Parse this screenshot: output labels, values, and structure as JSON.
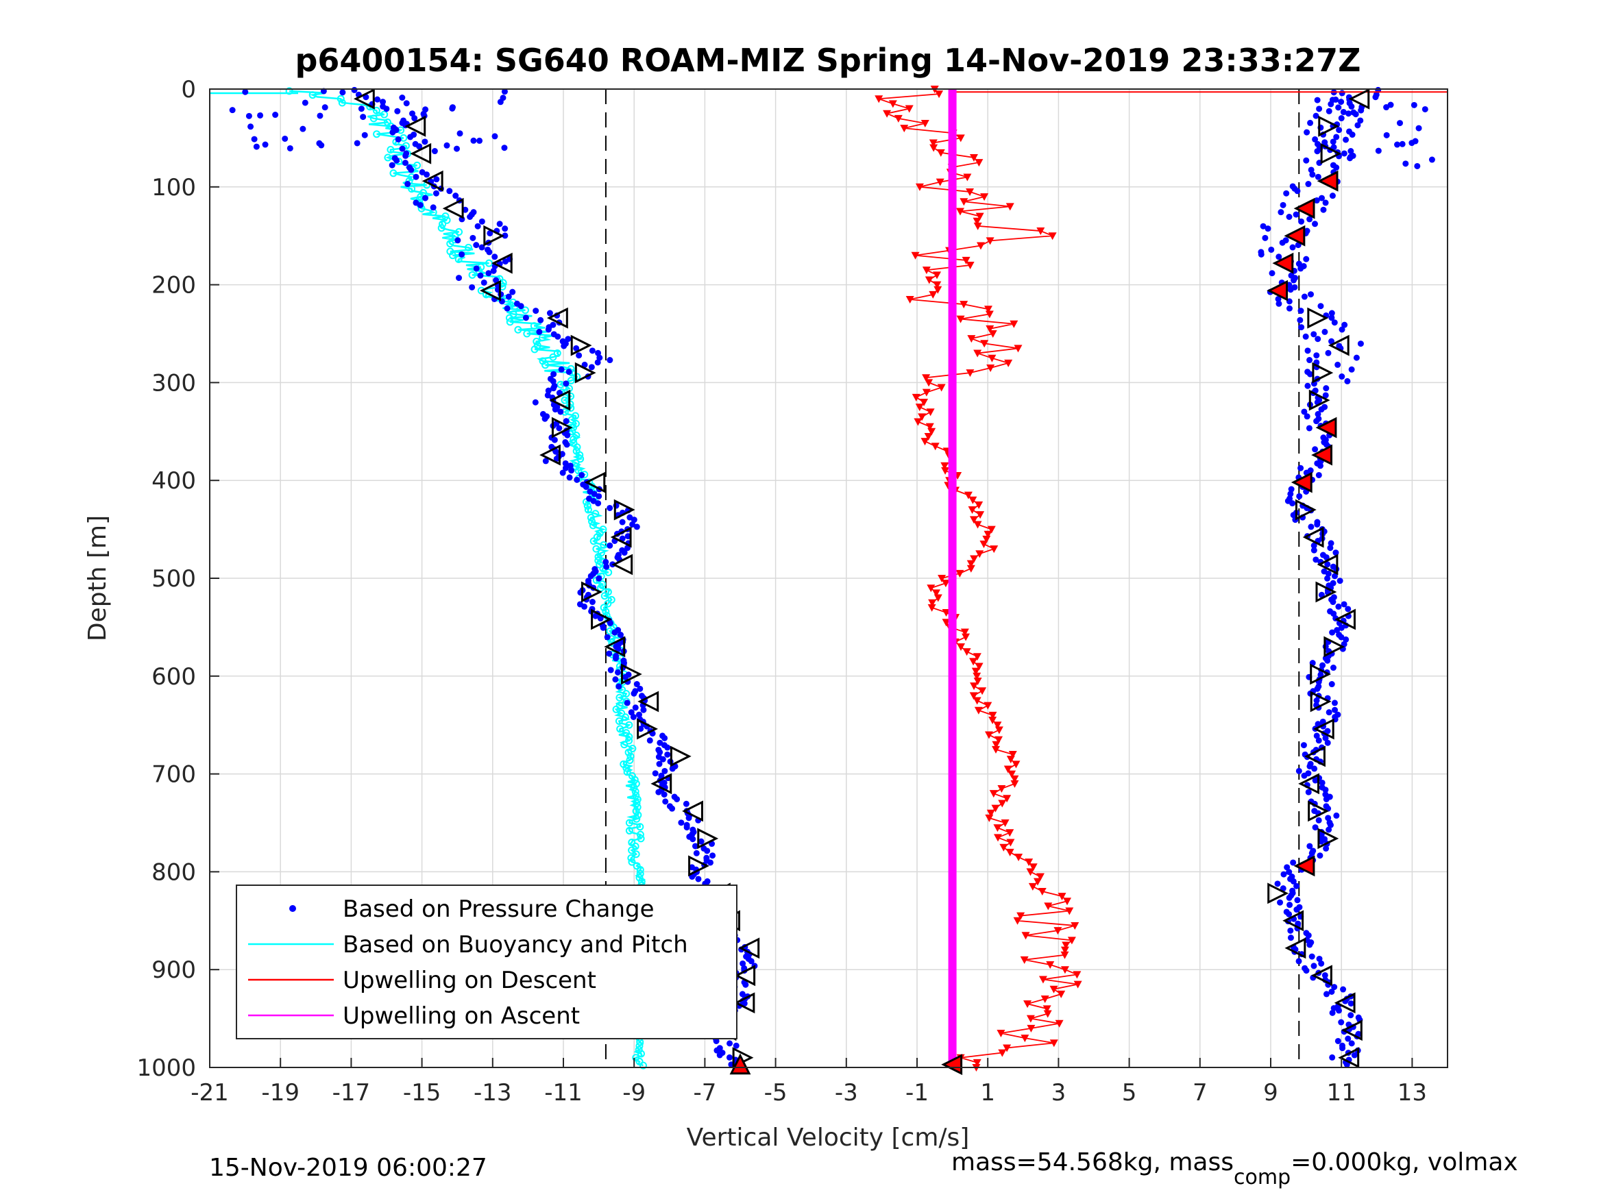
{
  "chart_data": {
    "type": "scatter",
    "title": "p6400154: SG640 ROAM-MIZ Spring 14-Nov-2019 23:33:27Z",
    "xlabel": "Vertical Velocity [cm/s]",
    "ylabel": "Depth [m]",
    "xlim": [
      -21,
      14
    ],
    "ylim": [
      1000,
      0
    ],
    "y_reversed": true,
    "grid": true,
    "x_ticks": [
      -21,
      -19,
      -17,
      -15,
      -13,
      -11,
      -9,
      -7,
      -5,
      -3,
      -1,
      1,
      3,
      5,
      7,
      9,
      11,
      13
    ],
    "y_ticks": [
      0,
      100,
      200,
      300,
      400,
      500,
      600,
      700,
      800,
      900,
      1000
    ],
    "x_tick_labels": [
      "-21",
      "-19",
      "-17",
      "-15",
      "-13",
      "-11",
      "-9",
      "-7",
      "-5",
      "-3",
      "-1",
      "1",
      "3",
      "5",
      "7",
      "9",
      "11",
      "13"
    ],
    "y_tick_labels": [
      "0",
      "100",
      "200",
      "300",
      "400",
      "500",
      "600",
      "700",
      "800",
      "900",
      "1000"
    ],
    "legend_position": "bottom-left",
    "legend": [
      {
        "label": "Based on Pressure Change",
        "style": "dot",
        "color": "#0000ff"
      },
      {
        "label": "Based on Buoyancy and Pitch",
        "style": "line",
        "color": "#00ffff"
      },
      {
        "label": "Upwelling on Descent",
        "style": "line",
        "color": "#ff0000"
      },
      {
        "label": "Upwelling on Ascent",
        "style": "line",
        "color": "#ff00ff"
      }
    ],
    "reference_lines": [
      {
        "orientation": "vertical",
        "x": -9.8,
        "style": "dashed",
        "color": "#000000"
      },
      {
        "orientation": "vertical",
        "x": 9.8,
        "style": "dashed",
        "color": "#000000"
      }
    ],
    "series": [
      {
        "name": "Based on Pressure Change",
        "color": "#0000ff",
        "style": "dots",
        "descent_depth": [
          5,
          20,
          40,
          60,
          80,
          100,
          120,
          140,
          160,
          180,
          200,
          220,
          240,
          260,
          280,
          300,
          320,
          340,
          360,
          380,
          400,
          420,
          440,
          460,
          480,
          500,
          520,
          540,
          560,
          580,
          600,
          620,
          640,
          660,
          680,
          700,
          720,
          740,
          760,
          780,
          800,
          820,
          840,
          860,
          880,
          900,
          920,
          940,
          960,
          980,
          995
        ],
        "descent_x": [
          -17.0,
          -15.5,
          -15.3,
          -15.0,
          -15.5,
          -14.8,
          -14.5,
          -13.0,
          -13.5,
          -13.0,
          -13.5,
          -12.2,
          -11.2,
          -11.0,
          -10.2,
          -11.0,
          -11.5,
          -11.2,
          -11.0,
          -11.3,
          -10.5,
          -10.0,
          -9.0,
          -9.3,
          -9.6,
          -10.0,
          -10.5,
          -10.0,
          -9.6,
          -9.5,
          -9.3,
          -9.0,
          -8.8,
          -8.4,
          -8.0,
          -8.2,
          -8.0,
          -7.6,
          -7.2,
          -7.0,
          -7.2,
          -7.0,
          -6.5,
          -6.2,
          -6.0,
          -5.8,
          -6.0,
          -6.2,
          -6.4,
          -6.4,
          -6.2
        ],
        "ascent_depth": [
          5,
          20,
          40,
          60,
          80,
          100,
          120,
          140,
          160,
          180,
          200,
          220,
          240,
          260,
          280,
          300,
          320,
          340,
          360,
          380,
          400,
          420,
          440,
          460,
          480,
          500,
          520,
          540,
          560,
          580,
          600,
          620,
          640,
          660,
          680,
          700,
          720,
          740,
          760,
          780,
          800,
          820,
          840,
          860,
          880,
          900,
          920,
          940,
          960,
          980,
          995
        ],
        "ascent_x": [
          11.5,
          11.0,
          10.8,
          10.5,
          10.8,
          10.2,
          10.0,
          9.5,
          9.4,
          9.3,
          9.3,
          9.8,
          10.6,
          10.8,
          10.7,
          10.4,
          10.2,
          10.4,
          10.5,
          10.2,
          10.0,
          9.8,
          10.0,
          10.3,
          10.6,
          10.6,
          10.8,
          11.0,
          11.0,
          10.6,
          10.4,
          10.4,
          10.6,
          10.4,
          10.1,
          10.0,
          10.4,
          10.6,
          10.6,
          10.2,
          9.6,
          9.4,
          9.6,
          9.7,
          9.9,
          10.3,
          10.9,
          11.0,
          11.3,
          11.2,
          11.0
        ]
      },
      {
        "name": "Based on Buoyancy and Pitch",
        "color": "#00ffff",
        "style": "line",
        "depth": [
          0,
          20,
          40,
          60,
          80,
          100,
          120,
          140,
          160,
          180,
          200,
          220,
          240,
          260,
          280,
          300,
          320,
          340,
          360,
          380,
          400,
          420,
          440,
          460,
          480,
          500,
          520,
          540,
          560,
          580,
          600,
          650,
          700,
          750,
          800,
          850,
          900,
          950,
          1000
        ],
        "x": [
          -18.5,
          -16.5,
          -16.0,
          -15.8,
          -15.5,
          -15.2,
          -14.9,
          -14.5,
          -14.0,
          -13.5,
          -13.0,
          -12.6,
          -12.0,
          -11.5,
          -11.2,
          -11.0,
          -10.9,
          -10.8,
          -10.7,
          -10.6,
          -10.4,
          -10.2,
          -10.1,
          -10.0,
          -9.9,
          -9.9,
          -9.8,
          -9.8,
          -9.6,
          -9.5,
          -9.4,
          -9.3,
          -9.1,
          -9.0,
          -8.9,
          -8.8,
          -8.8,
          -8.8,
          -8.9
        ]
      },
      {
        "name": "Upwelling on Descent",
        "color": "#ff0000",
        "style": "line-triangles",
        "depth": [
          0,
          10,
          20,
          30,
          40,
          50,
          60,
          70,
          80,
          90,
          100,
          110,
          120,
          130,
          140,
          150,
          160,
          170,
          180,
          190,
          200,
          210,
          220,
          230,
          240,
          250,
          260,
          270,
          280,
          290,
          300,
          320,
          340,
          360,
          380,
          400,
          420,
          440,
          460,
          480,
          500,
          520,
          540,
          560,
          580,
          600,
          620,
          640,
          660,
          680,
          700,
          720,
          740,
          760,
          780,
          800,
          820,
          840,
          860,
          880,
          900,
          920,
          940,
          960,
          980,
          1000
        ],
        "x": [
          0.0,
          -1.5,
          -1.8,
          -1.0,
          -2.0,
          0.5,
          -0.5,
          1.0,
          0.0,
          0.8,
          -1.0,
          1.0,
          1.2,
          0.6,
          1.5,
          2.5,
          0.5,
          -0.5,
          0.0,
          -0.8,
          -0.5,
          -1.0,
          0.0,
          0.5,
          1.0,
          0.5,
          1.2,
          1.0,
          0.8,
          0.3,
          -0.5,
          -0.8,
          -0.7,
          -0.5,
          -0.2,
          0.0,
          0.5,
          0.8,
          1.0,
          0.8,
          -0.3,
          -0.6,
          -0.2,
          0.2,
          0.5,
          0.6,
          0.8,
          1.0,
          1.2,
          1.5,
          1.6,
          1.4,
          1.2,
          1.4,
          1.8,
          2.2,
          2.4,
          2.6,
          2.6,
          2.5,
          2.9,
          2.8,
          2.4,
          2.2,
          2.0,
          0.0
        ]
      },
      {
        "name": "Upwelling on Ascent",
        "color": "#ff00ff",
        "style": "line",
        "depth": [
          0,
          1000
        ],
        "x": [
          0.0,
          0.0
        ]
      }
    ],
    "annotations": [
      {
        "text": "15-Nov-2019 06:00:27",
        "position": "bottom-left"
      },
      {
        "text_parts": [
          "mass=54.568kg, mass",
          "comp",
          "=0.000kg, volmax"
        ],
        "position": "bottom-right"
      }
    ]
  }
}
